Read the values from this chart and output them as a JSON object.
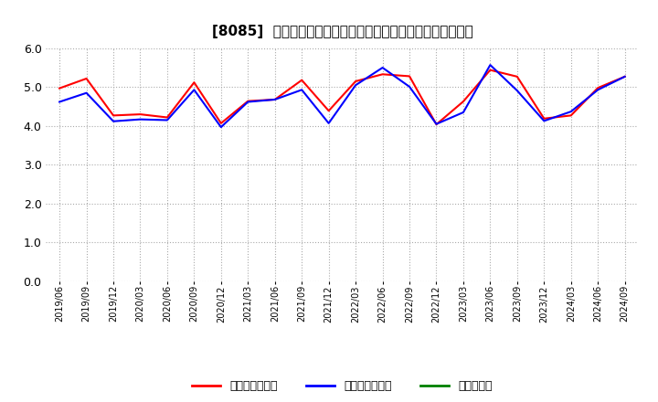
{
  "title": "[8085]  売上債権回転率、買入債務回転率、在庫回転率の推移",
  "ylim": [
    0.0,
    6.0
  ],
  "yticks": [
    0.0,
    1.0,
    2.0,
    3.0,
    4.0,
    5.0,
    6.0
  ],
  "background_color": "#ffffff",
  "grid_color": "#aaaaaa",
  "x_labels": [
    "2019/06",
    "2019/09",
    "2019/12",
    "2020/03",
    "2020/06",
    "2020/09",
    "2020/12",
    "2021/03",
    "2021/06",
    "2021/09",
    "2021/12",
    "2022/03",
    "2022/06",
    "2022/09",
    "2022/12",
    "2023/03",
    "2023/06",
    "2023/09",
    "2023/12",
    "2024/03",
    "2024/06",
    "2024/09"
  ],
  "series": [
    {
      "name": "売上債権回転率",
      "color": "#ff0000",
      "values": [
        4.97,
        5.22,
        4.27,
        4.3,
        4.22,
        5.12,
        4.07,
        4.64,
        4.68,
        5.18,
        4.39,
        5.15,
        5.33,
        5.28,
        4.04,
        4.63,
        5.44,
        5.27,
        4.19,
        4.27,
        4.98,
        5.27
      ]
    },
    {
      "name": "買入債務回転率",
      "color": "#0000ff",
      "values": [
        4.62,
        4.85,
        4.12,
        4.17,
        4.15,
        4.93,
        3.97,
        4.62,
        4.68,
        4.93,
        4.07,
        5.05,
        5.5,
        5.01,
        4.05,
        4.35,
        5.57,
        4.91,
        4.13,
        4.37,
        4.93,
        5.27
      ]
    },
    {
      "name": "在庫回転率",
      "color": "#008000",
      "values": [
        null,
        null,
        null,
        null,
        null,
        null,
        null,
        null,
        null,
        null,
        null,
        null,
        null,
        null,
        null,
        null,
        null,
        null,
        null,
        null,
        null,
        null
      ]
    }
  ],
  "legend_entries": [
    "売上債権回転率",
    "買入債務回転率",
    "在庫回転率"
  ],
  "legend_colors": [
    "#ff0000",
    "#0000ff",
    "#008000"
  ],
  "title_fontsize": 11,
  "tick_fontsize": 7,
  "ytick_fontsize": 9,
  "legend_fontsize": 9
}
